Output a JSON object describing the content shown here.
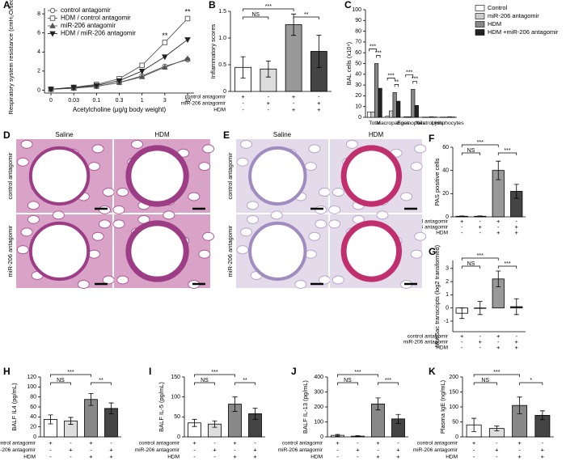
{
  "chart_data": [
    {
      "type": "line",
      "letter": "A",
      "ylabel": "Respiratory system resistance (cmH₂O/sec.mL)",
      "xlabel": "Acetylcholine (μg/g body weight)",
      "categories": [
        "0",
        "0.03",
        "0.1",
        "0.3",
        "1",
        "3",
        "10"
      ],
      "ylim": [
        -0.3,
        8.6
      ],
      "yticks": [
        0,
        2,
        4,
        6,
        8
      ],
      "legend": "upper left",
      "series": [
        {
          "name": "control antagomir",
          "color": "#555",
          "marker": "circle-open",
          "values": [
            0.1,
            0.2,
            0.4,
            0.8,
            1.5,
            2.5,
            3.2
          ]
        },
        {
          "name": "HDM / control antagomir",
          "color": "#555",
          "marker": "square-open",
          "values": [
            0.1,
            0.3,
            0.6,
            1.2,
            2.6,
            5.0,
            7.5
          ]
        },
        {
          "name": "miR-206 antagomir",
          "color": "#555",
          "marker": "triangle",
          "values": [
            0.1,
            0.2,
            0.4,
            0.8,
            1.4,
            2.4,
            3.3
          ]
        },
        {
          "name": "HDM / miR-206 antagomir",
          "color": "#222",
          "marker": "triangle-down",
          "values": [
            0.1,
            0.3,
            0.5,
            1.0,
            2.0,
            3.5,
            5.3
          ]
        }
      ],
      "annotations": [
        {
          "category": 5,
          "text": "**"
        },
        {
          "category": 6,
          "text": "**"
        }
      ]
    },
    {
      "type": "bar",
      "letter": "B",
      "ylabel": "Inflammatory scores",
      "ylim": [
        0,
        1.5
      ],
      "yticks": [
        0,
        0.5,
        {
          "value": 1,
          "label": "1.0"
        },
        1.5
      ],
      "values": [
        0.45,
        0.42,
        1.25,
        0.75
      ],
      "errors": [
        0.2,
        0.15,
        0.2,
        0.3
      ],
      "colors": [
        "#fff",
        "#ddd",
        "#999",
        "#444"
      ],
      "conditions": [
        {
          "label": "control antagomir",
          "signs": [
            "+",
            "-",
            "+",
            "-"
          ]
        },
        {
          "label": "miR-206 antagomir",
          "signs": [
            "-",
            "+",
            "-",
            "+"
          ]
        },
        {
          "label": "HDM",
          "signs": [
            "-",
            "-",
            "+",
            "+"
          ]
        }
      ],
      "significance": [
        {
          "from": 0,
          "to": 1,
          "label": "NS"
        },
        {
          "from": 0,
          "to": 2,
          "label": "***"
        },
        {
          "from": 2,
          "to": 3,
          "label": "**"
        }
      ]
    },
    {
      "type": "grouped-bar",
      "letter": "C",
      "ylabel": "BAL cells (x10⁴)",
      "ylim": [
        0,
        100
      ],
      "yticks": [
        0,
        10,
        20,
        30,
        40,
        50,
        60,
        70,
        80,
        90,
        100
      ],
      "categories": [
        "Total",
        "Macropahges",
        "Eosinophils",
        "Neutrophils",
        "Lymphocytes"
      ],
      "series": [
        {
          "name": "Control",
          "color": "#fff",
          "values": [
            5,
            1,
            0.5,
            0.2,
            0.2
          ]
        },
        {
          "name": "miR-206 antagomir",
          "color": "#ccc",
          "values": [
            5,
            6,
            0.5,
            0.2,
            0.2
          ]
        },
        {
          "name": "HDM",
          "color": "#888",
          "values": [
            50,
            23,
            26,
            0.5,
            0.5
          ]
        },
        {
          "name": "HDM +miR-206 antagomir",
          "color": "#222",
          "values": [
            27,
            15,
            11,
            0.3,
            0.3
          ]
        }
      ],
      "significance": [
        {
          "category": 0,
          "from": 0,
          "to": 2,
          "label": "***"
        },
        {
          "category": 0,
          "from": 2,
          "to": 3,
          "label": "***"
        },
        {
          "category": 1,
          "from": 0,
          "to": 2,
          "label": "***"
        },
        {
          "category": 1,
          "from": 2,
          "to": 3,
          "label": "**"
        },
        {
          "category": 2,
          "from": 0,
          "to": 2,
          "label": "***"
        },
        {
          "category": 2,
          "from": 2,
          "to": 3,
          "label": "***"
        }
      ]
    },
    {
      "type": "bar",
      "letter": "F",
      "ylabel": "PAS positive cells",
      "ylim": [
        0,
        60
      ],
      "yticks": [
        0,
        20,
        40,
        60
      ],
      "values": [
        0.5,
        0.5,
        40,
        22
      ],
      "errors": [
        0.3,
        0.3,
        8,
        6
      ],
      "colors": [
        "#fff",
        "#ddd",
        "#999",
        "#444"
      ],
      "conditions": [
        {
          "label": "control antagomir",
          "signs": [
            "+",
            "-",
            "+",
            "-"
          ]
        },
        {
          "label": "miR-206 antagomir",
          "signs": [
            "-",
            "+",
            "-",
            "+"
          ]
        },
        {
          "label": "HDM",
          "signs": [
            "-",
            "-",
            "+",
            "+"
          ]
        }
      ],
      "significance": [
        {
          "from": 0,
          "to": 1,
          "label": "NS"
        },
        {
          "from": 0,
          "to": 2,
          "label": "***"
        },
        {
          "from": 2,
          "to": 3,
          "label": "***"
        }
      ]
    },
    {
      "type": "bar",
      "letter": "G",
      "ylabel": "Muc5ac transcripts (log2 transformed)",
      "ylim": [
        -1.8,
        3.6
      ],
      "yticks": [
        -1,
        0,
        1,
        2,
        3
      ],
      "values": [
        -0.4,
        0.0,
        2.2,
        0.1
      ],
      "errors": [
        0.4,
        0.5,
        0.6,
        0.6
      ],
      "colors": [
        "#fff",
        "#ddd",
        "#999",
        "#444"
      ],
      "conditions": [
        {
          "label": "control antagomir",
          "signs": [
            "+",
            "-",
            "+",
            "-"
          ]
        },
        {
          "label": "miR-206 antagomir",
          "signs": [
            "-",
            "+",
            "-",
            "+"
          ]
        },
        {
          "label": "HDM",
          "signs": [
            "-",
            "-",
            "+",
            "+"
          ]
        }
      ],
      "significance": [
        {
          "from": 0,
          "to": 1,
          "label": "NS"
        },
        {
          "from": 0,
          "to": 2,
          "label": "***"
        },
        {
          "from": 2,
          "to": 3,
          "label": "***"
        }
      ]
    },
    {
      "type": "bar",
      "letter": "H",
      "ylabel": "BALF IL4 (pg/mL)",
      "ylim": [
        0,
        120
      ],
      "yticks": [
        0,
        20,
        40,
        60,
        80,
        100,
        120
      ],
      "values": [
        35,
        32,
        75,
        57
      ],
      "errors": [
        9,
        7,
        12,
        11
      ],
      "colors": [
        "#fff",
        "#ddd",
        "#888",
        "#444"
      ],
      "conditions": [
        {
          "label": "control antagomir",
          "signs": [
            "+",
            "-",
            "+",
            "-"
          ]
        },
        {
          "label": "miR-206 antagomir",
          "signs": [
            "-",
            "+",
            "-",
            "+"
          ]
        },
        {
          "label": "HDM",
          "signs": [
            "-",
            "-",
            "+",
            "+"
          ]
        }
      ],
      "significance": [
        {
          "from": 0,
          "to": 1,
          "label": "NS"
        },
        {
          "from": 0,
          "to": 2,
          "label": "***"
        },
        {
          "from": 2,
          "to": 3,
          "label": "**"
        }
      ]
    },
    {
      "type": "bar",
      "letter": "I",
      "ylabel": "BALF IL-5 (pg/mL)",
      "ylim": [
        0,
        150
      ],
      "yticks": [
        0,
        50,
        100,
        150
      ],
      "values": [
        35,
        32,
        82,
        58
      ],
      "errors": [
        9,
        8,
        18,
        14
      ],
      "colors": [
        "#fff",
        "#ddd",
        "#888",
        "#444"
      ],
      "conditions": [
        {
          "label": "control antagomir",
          "signs": [
            "+",
            "-",
            "+",
            "-"
          ]
        },
        {
          "label": "miR-206 antagomir",
          "signs": [
            "-",
            "+",
            "-",
            "+"
          ]
        },
        {
          "label": "HDM",
          "signs": [
            "-",
            "-",
            "+",
            "+"
          ]
        }
      ],
      "significance": [
        {
          "from": 0,
          "to": 1,
          "label": "NS"
        },
        {
          "from": 0,
          "to": 2,
          "label": "***"
        },
        {
          "from": 2,
          "to": 3,
          "label": "**"
        }
      ]
    },
    {
      "type": "bar",
      "letter": "J",
      "ylabel": "BALF IL-13 (pg/mL)",
      "ylim": [
        0,
        400
      ],
      "yticks": [
        0,
        100,
        200,
        300,
        400
      ],
      "values": [
        10,
        5,
        220,
        120
      ],
      "errors": [
        6,
        3,
        40,
        30
      ],
      "colors": [
        "#fff",
        "#ddd",
        "#888",
        "#444"
      ],
      "conditions": [
        {
          "label": "control antagomir",
          "signs": [
            "+",
            "-",
            "+",
            "-"
          ]
        },
        {
          "label": "miR-206 antagomir",
          "signs": [
            "-",
            "+",
            "-",
            "+"
          ]
        },
        {
          "label": "HDM",
          "signs": [
            "-",
            "-",
            "+",
            "+"
          ]
        }
      ],
      "significance": [
        {
          "from": 0,
          "to": 1,
          "label": "NS"
        },
        {
          "from": 0,
          "to": 2,
          "label": "***"
        },
        {
          "from": 2,
          "to": 3,
          "label": "***"
        }
      ]
    },
    {
      "type": "bar",
      "letter": "K",
      "ylabel": "Plasma IgE (ng/mL)",
      "ylim": [
        0,
        200
      ],
      "yticks": [
        0,
        50,
        100,
        150,
        200
      ],
      "values": [
        40,
        28,
        105,
        72
      ],
      "errors": [
        22,
        8,
        28,
        15
      ],
      "colors": [
        "#fff",
        "#ddd",
        "#888",
        "#444"
      ],
      "conditions": [
        {
          "label": "control antagomir",
          "signs": [
            "+",
            "-",
            "+",
            "-"
          ]
        },
        {
          "label": "miR-206 antagomir",
          "signs": [
            "-",
            "+",
            "-",
            "+"
          ]
        },
        {
          "label": "HDM",
          "signs": [
            "-",
            "-",
            "+",
            "+"
          ]
        }
      ],
      "significance": [
        {
          "from": 0,
          "to": 1,
          "label": "NS"
        },
        {
          "from": 0,
          "to": 2,
          "label": "***"
        },
        {
          "from": 2,
          "to": 3,
          "label": "*"
        }
      ]
    }
  ],
  "histology": [
    {
      "letter": "D",
      "columns": [
        "Saline",
        "HDM"
      ],
      "rows": [
        "control antagomir",
        "miR-206 antagomir"
      ],
      "stain": "#d9a3c8"
    },
    {
      "letter": "E",
      "columns": [
        "Saline",
        "HDM"
      ],
      "rows": [
        "control antagomir",
        "miR-206 antagomir"
      ],
      "stain": "#e4dbea"
    }
  ]
}
